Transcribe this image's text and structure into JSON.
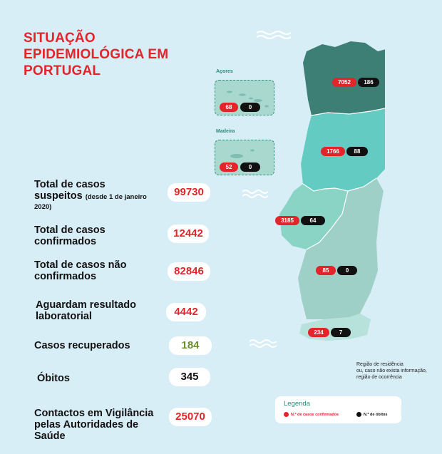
{
  "title": [
    "SITUAÇÃO",
    "EPIDEMIOLÓGICA EM",
    "PORTUGAL"
  ],
  "stats": [
    {
      "label": "Total de casos",
      "label2": "suspeitos",
      "note": "(desde 1 de janeiro",
      "label3": "2020)",
      "value": "99730"
    },
    {
      "label": "Total de casos",
      "label2": "confirmados",
      "value": "12442"
    },
    {
      "label": "Total de casos não",
      "label2": "confirmados",
      "value": "82846"
    },
    {
      "label": "Aguardam resultado",
      "label2": "laboratorial",
      "value": "4442"
    },
    {
      "label": "Casos recuperados",
      "value": "184"
    },
    {
      "label": "Óbitos",
      "value": "345"
    },
    {
      "label": "Contactos em Vigilância",
      "label2": "pelas Autoridades de",
      "label3": "Saúde",
      "value": "25070"
    }
  ],
  "islands": {
    "acores": {
      "label": "Açores",
      "cases": "68",
      "deaths": "0"
    },
    "madeira": {
      "label": "Madeira",
      "cases": "52",
      "deaths": "0"
    }
  },
  "regions": {
    "norte": {
      "cases": "7052",
      "deaths": "186"
    },
    "centro": {
      "cases": "1766",
      "deaths": "88"
    },
    "lisboa": {
      "cases": "3185",
      "deaths": "64"
    },
    "alentejo": {
      "cases": "85",
      "deaths": "0"
    },
    "algarve": {
      "cases": "234",
      "deaths": "7"
    }
  },
  "note": [
    "Região de residência",
    "ou, caso não exista informação,",
    "região de ocorrência"
  ],
  "legend": {
    "title": "Legenda",
    "cases": "N.º de casos confirmados",
    "deaths": "N.º de óbitos"
  },
  "colors": {
    "accent": "#e3242b",
    "norte": "#3d7f74",
    "centro": "#63cbc2",
    "lisboa": "#8ad4c6",
    "alentejo": "#9fd0c7",
    "algarve": "#b6e2db"
  }
}
